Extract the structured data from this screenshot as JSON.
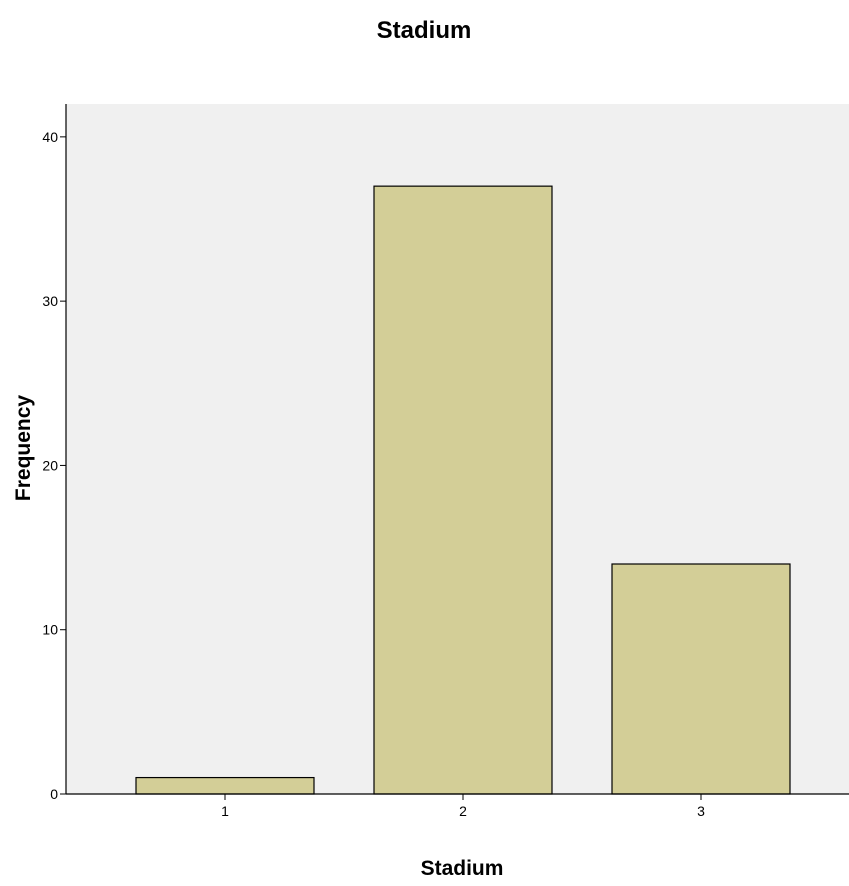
{
  "chart_data": {
    "type": "bar",
    "title": "Stadium",
    "xlabel": "Stadium",
    "ylabel": "Frequency",
    "categories": [
      "1",
      "2",
      "3"
    ],
    "values": [
      1,
      37,
      14
    ],
    "ylim": [
      0,
      42
    ],
    "yticks": [
      0,
      10,
      20,
      30,
      40
    ],
    "grid": false,
    "colors": {
      "plot_background": "#f0f0f0",
      "bar_fill": "#d3ce97",
      "bar_stroke": "#000000",
      "axis": "#000000"
    }
  }
}
